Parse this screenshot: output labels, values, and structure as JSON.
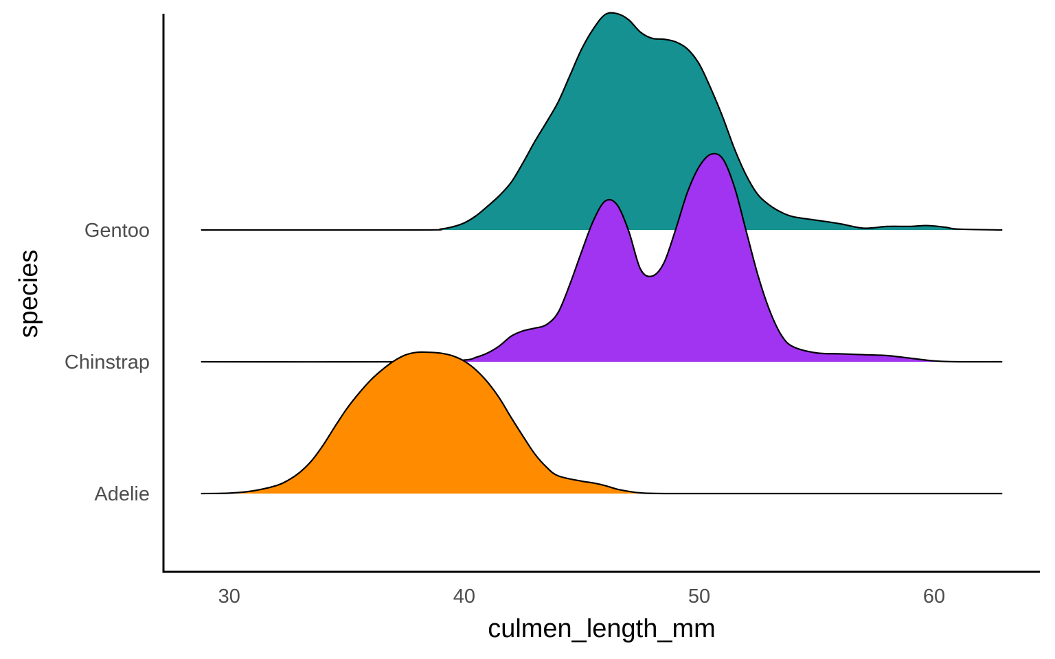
{
  "chart_data": {
    "type": "ridgeline",
    "title": "",
    "xlabel": "culmen_length_mm",
    "ylabel": "species",
    "xlim": [
      27.2,
      64.5
    ],
    "x_ticks": [
      "30",
      "40",
      "50",
      "60"
    ],
    "x_tick_values": [
      30,
      40,
      50,
      60
    ],
    "grid": false,
    "legend": "none",
    "categories": [
      "Adelie",
      "Chinstrap",
      "Gentoo"
    ],
    "density_scale_note": "relative ridge height, 1 = one category spacing",
    "series": [
      {
        "name": "Adelie",
        "color": "#FF8C00",
        "x": [
          28.8,
          30,
          31,
          32,
          32.5,
          33,
          33.5,
          34,
          34.5,
          35,
          35.5,
          36,
          36.5,
          37,
          37.5,
          38,
          38.5,
          39,
          39.5,
          40,
          40.5,
          41,
          41.5,
          42,
          42.5,
          43,
          43.5,
          44,
          45,
          45.5,
          46,
          46.5,
          47,
          47.5,
          48,
          49,
          52,
          56,
          60,
          62.9
        ],
        "density": [
          0.0,
          0.005,
          0.03,
          0.09,
          0.15,
          0.24,
          0.37,
          0.55,
          0.76,
          0.96,
          1.13,
          1.28,
          1.4,
          1.5,
          1.57,
          1.6,
          1.6,
          1.59,
          1.56,
          1.5,
          1.4,
          1.26,
          1.08,
          0.86,
          0.65,
          0.45,
          0.3,
          0.2,
          0.14,
          0.12,
          0.09,
          0.05,
          0.025,
          0.008,
          0.002,
          0.0,
          0.0,
          0.0,
          0.0,
          0.0
        ]
      },
      {
        "name": "Chinstrap",
        "color": "#A034F0",
        "x": [
          28.8,
          38,
          40,
          40.5,
          41,
          41.5,
          42,
          42.5,
          43,
          43.5,
          44,
          44.5,
          45,
          45.5,
          46,
          46.5,
          47,
          47.5,
          48,
          48.5,
          49,
          49.5,
          50,
          50.5,
          51,
          51.5,
          52,
          52.5,
          53,
          53.5,
          54,
          55,
          56,
          57,
          58,
          59,
          60,
          61,
          62.9
        ],
        "density": [
          0.0,
          0.0,
          0.02,
          0.05,
          0.1,
          0.18,
          0.29,
          0.35,
          0.38,
          0.42,
          0.56,
          0.88,
          1.25,
          1.6,
          1.82,
          1.78,
          1.48,
          1.05,
          0.97,
          1.12,
          1.5,
          1.92,
          2.21,
          2.35,
          2.3,
          1.98,
          1.48,
          0.98,
          0.58,
          0.3,
          0.17,
          0.1,
          0.09,
          0.08,
          0.07,
          0.04,
          0.01,
          0.0,
          0.0
        ]
      },
      {
        "name": "Gentoo",
        "color": "#169191",
        "x": [
          28.8,
          38,
          39,
          39.5,
          40,
          40.5,
          41,
          41.5,
          42,
          42.5,
          43,
          43.5,
          44,
          44.5,
          45,
          45.5,
          46,
          46.5,
          47,
          47.5,
          48,
          48.5,
          49,
          49.5,
          50,
          50.5,
          51,
          51.5,
          52,
          52.5,
          53,
          53.5,
          54,
          55,
          56,
          57,
          58,
          59,
          59.7,
          60.5,
          61,
          62.9
        ],
        "density": [
          0.0,
          0.0,
          0.01,
          0.035,
          0.08,
          0.16,
          0.27,
          0.39,
          0.54,
          0.76,
          1.0,
          1.22,
          1.45,
          1.75,
          2.05,
          2.28,
          2.44,
          2.45,
          2.38,
          2.24,
          2.17,
          2.16,
          2.13,
          2.05,
          1.88,
          1.6,
          1.28,
          0.92,
          0.62,
          0.4,
          0.28,
          0.2,
          0.15,
          0.11,
          0.07,
          0.02,
          0.04,
          0.04,
          0.05,
          0.03,
          0.01,
          0.0
        ]
      }
    ]
  }
}
